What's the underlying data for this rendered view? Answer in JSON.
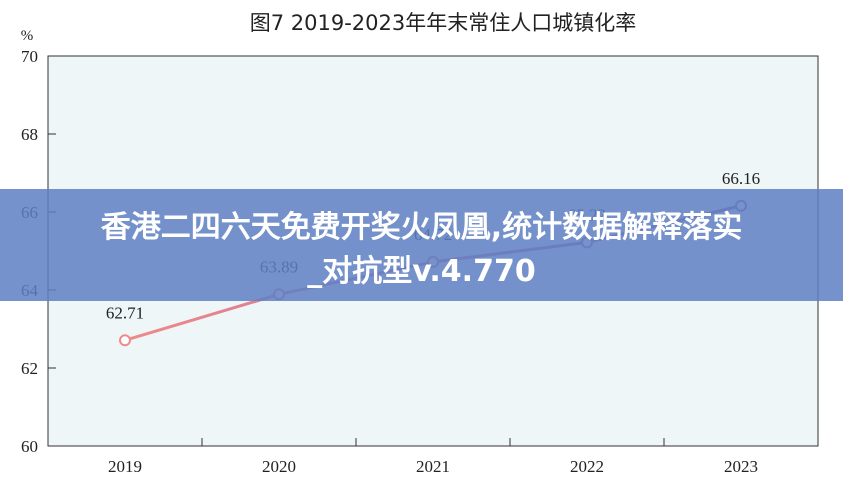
{
  "chart_data": {
    "type": "line",
    "title": "图7    2019-2023年年末常住人口城镇化率",
    "unit_label": "%",
    "x": [
      "2019",
      "2020",
      "2021",
      "2022",
      "2023"
    ],
    "series": [
      {
        "values": [
          62.71,
          63.89,
          64.72,
          65.22,
          66.16
        ],
        "labels": [
          "62.71",
          "63.89",
          "64.72",
          "65.22",
          "66.16"
        ]
      }
    ],
    "y_ticks": [
      "60",
      "62",
      "64",
      "66",
      "68",
      "70"
    ],
    "ylim": [
      60,
      70
    ],
    "grid": false,
    "colors": {
      "plot_background": "#eef6f8",
      "line_start": "#f08a8a",
      "line_end": "#a25fa8",
      "axis": "#333333"
    }
  },
  "overlay": {
    "line1": "香港二四六天免费开奖火凤凰,统计数据解释落实",
    "line2": "_对抗型v.4.770"
  }
}
